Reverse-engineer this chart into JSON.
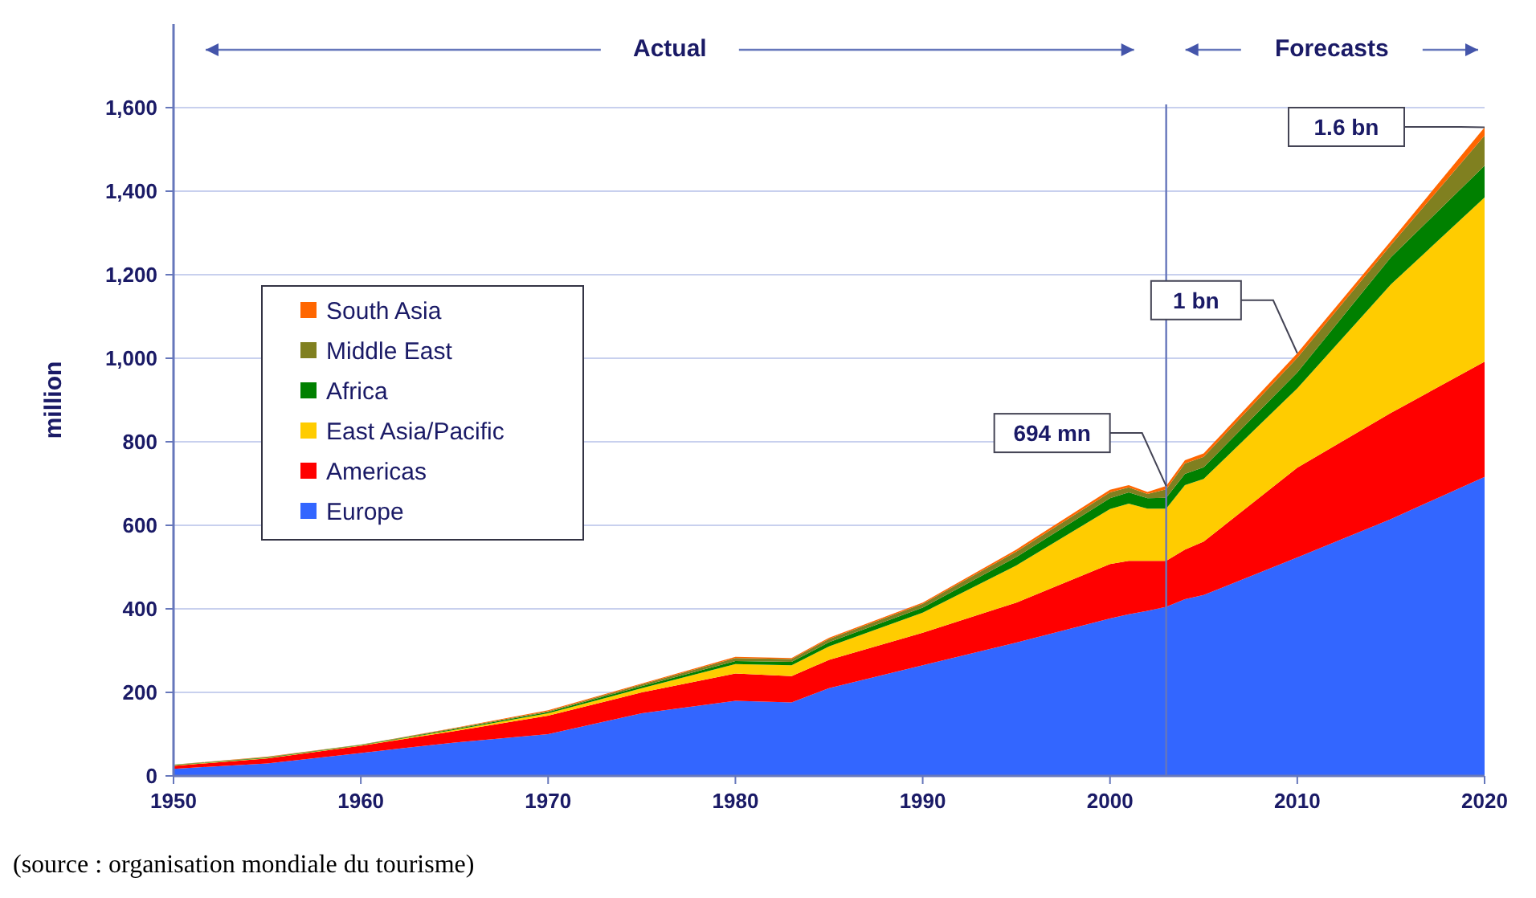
{
  "chart_data": {
    "type": "area",
    "stacked": true,
    "ylabel": "million",
    "x": [
      1950,
      1955,
      1960,
      1965,
      1970,
      1975,
      1980,
      1983,
      1985,
      1990,
      1995,
      2000,
      2001,
      2002,
      2003,
      2004,
      2005,
      2010,
      2015,
      2020
    ],
    "series": [
      {
        "name": "Europe",
        "color": "#3366ff",
        "values": [
          17,
          30,
          55,
          80,
          100,
          150,
          180,
          176,
          210,
          265,
          319,
          377,
          387,
          395,
          405,
          423,
          433,
          523,
          615,
          716
        ]
      },
      {
        "name": "Americas",
        "color": "#ff0000",
        "values": [
          7,
          12,
          17,
          27,
          44,
          50,
          65,
          63,
          68,
          78,
          96,
          130,
          128,
          120,
          110,
          119,
          128,
          215,
          254,
          276
        ]
      },
      {
        "name": "East Asia/Pacific",
        "color": "#ffcc00",
        "values": [
          1,
          1,
          1,
          3,
          6,
          10,
          23,
          26,
          32,
          48,
          89,
          132,
          137,
          125,
          125,
          154,
          150,
          190,
          308,
          393
        ]
      },
      {
        "name": "Africa",
        "color": "#008000",
        "values": [
          1,
          1,
          1,
          2,
          3,
          5,
          7,
          8,
          10,
          12,
          20,
          26,
          27,
          25,
          26,
          27,
          28,
          38,
          65,
          76
        ]
      },
      {
        "name": "Middle East",
        "color": "#808020",
        "values": [
          1,
          1,
          1,
          2,
          2,
          4,
          7,
          7,
          8,
          9,
          13,
          14,
          12,
          10,
          20,
          25,
          25,
          35,
          29,
          72
        ]
      },
      {
        "name": "South Asia",
        "color": "#ff6600",
        "values": [
          0,
          1,
          0,
          1,
          2,
          2,
          3,
          2,
          3,
          3,
          5,
          6,
          5,
          5,
          8,
          8,
          8,
          11,
          10,
          20
        ]
      }
    ],
    "xlim": [
      1950,
      2020
    ],
    "xticks": [
      1950,
      1960,
      1970,
      1980,
      1990,
      2000,
      2010,
      2020
    ],
    "ylim": [
      0,
      1800
    ],
    "yticks": [
      0,
      200,
      400,
      600,
      800,
      {
        "value": 1000,
        "label": "1,000"
      },
      {
        "value": 1200,
        "label": "1,200"
      },
      {
        "value": 1400,
        "label": "1,400"
      },
      {
        "value": 1600,
        "label": "1,600"
      }
    ],
    "grid": "y",
    "legend": "left",
    "ref_lines": [
      {
        "axis": "x",
        "value": 2003,
        "color": "#6677bb"
      }
    ],
    "annotations": [
      "Actual",
      "Forecasts",
      {
        "text": "694 mn",
        "x": 2003,
        "y": 694
      },
      {
        "text": "1 bn",
        "x": 2010,
        "y": 1012
      },
      {
        "text": "1.6 bn",
        "x": 2020,
        "y": 1553
      },
      "(source : organisation mondiale du tourisme)"
    ]
  }
}
